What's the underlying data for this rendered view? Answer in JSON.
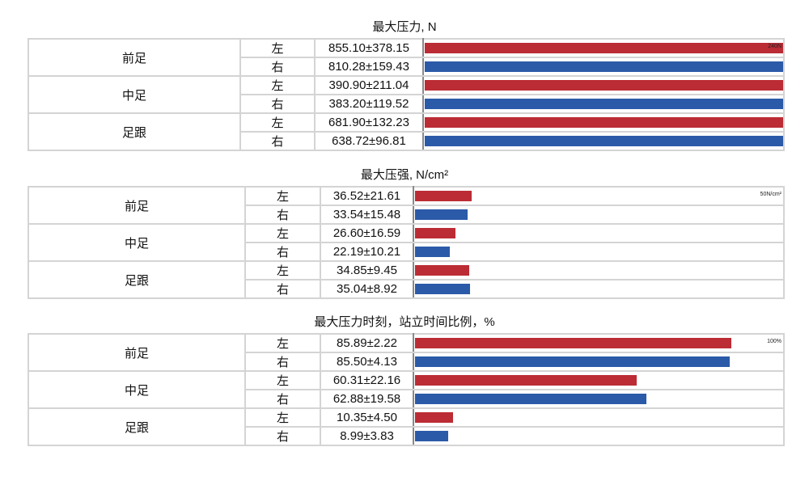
{
  "colors": {
    "left": "#bb2c35",
    "right": "#2b5aa8"
  },
  "chart_data": [
    {
      "type": "table",
      "title": "最大压力, N",
      "scale_label": "240N",
      "rows": [
        {
          "group": "前足",
          "side": "左",
          "value": "855.10±378.15",
          "fill": 1.0
        },
        {
          "group": "前足",
          "side": "右",
          "value": "810.28±159.43",
          "fill": 1.0
        },
        {
          "group": "中足",
          "side": "左",
          "value": "390.90±211.04",
          "fill": 1.0
        },
        {
          "group": "中足",
          "side": "右",
          "value": "383.20±119.52",
          "fill": 1.0
        },
        {
          "group": "足跟",
          "side": "左",
          "value": "681.90±132.23",
          "fill": 1.0
        },
        {
          "group": "足跟",
          "side": "右",
          "value": "638.72±96.81",
          "fill": 1.0
        }
      ]
    },
    {
      "type": "table",
      "title": "最大压强, N/cm²",
      "scale_label": "50N/cm²",
      "rows": [
        {
          "group": "前足",
          "side": "左",
          "value": "36.52±21.61",
          "fill": 0.154
        },
        {
          "group": "前足",
          "side": "右",
          "value": "33.54±15.48",
          "fill": 0.142
        },
        {
          "group": "中足",
          "side": "左",
          "value": "26.60±16.59",
          "fill": 0.11
        },
        {
          "group": "中足",
          "side": "右",
          "value": "22.19±10.21",
          "fill": 0.094
        },
        {
          "group": "足跟",
          "side": "左",
          "value": "34.85±9.45",
          "fill": 0.147
        },
        {
          "group": "足跟",
          "side": "右",
          "value": "35.04±8.92",
          "fill": 0.149
        }
      ]
    },
    {
      "type": "table",
      "title": "最大压力时刻，站立时间比例，%",
      "scale_label": "100%",
      "rows": [
        {
          "group": "前足",
          "side": "左",
          "value": "85.89±2.22",
          "fill": 0.8589
        },
        {
          "group": "前足",
          "side": "右",
          "value": "85.50±4.13",
          "fill": 0.855
        },
        {
          "group": "中足",
          "side": "左",
          "value": "60.31±22.16",
          "fill": 0.6031
        },
        {
          "group": "中足",
          "side": "右",
          "value": "62.88±19.58",
          "fill": 0.6288
        },
        {
          "group": "足跟",
          "side": "左",
          "value": "10.35±4.50",
          "fill": 0.1035
        },
        {
          "group": "足跟",
          "side": "右",
          "value": "8.99±3.83",
          "fill": 0.0899
        }
      ]
    }
  ]
}
